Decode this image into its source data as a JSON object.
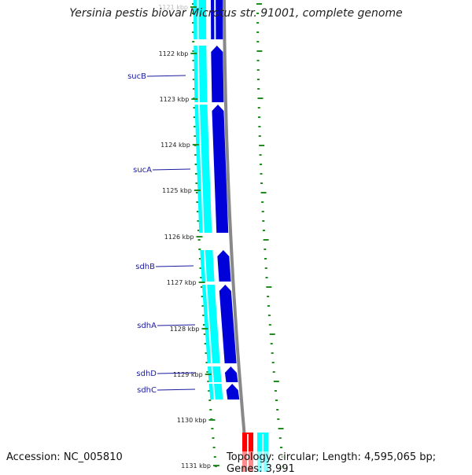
{
  "title": "Yersinia pestis biovar Microtus str. 91001, complete genome",
  "accession": "Accession: NC_005810",
  "topology": "Topology: circular; Length: 4,595,065 bp; Genes: 3,991",
  "ruler": [
    {
      "label": "1121 kbp",
      "faded": true
    },
    {
      "label": "1122 kbp"
    },
    {
      "label": "1123 kbp"
    },
    {
      "label": "1124 kbp"
    },
    {
      "label": "1125 kbp"
    },
    {
      "label": "1126 kbp"
    },
    {
      "label": "1127 kbp"
    },
    {
      "label": "1128 kbp"
    },
    {
      "label": "1129 kbp"
    },
    {
      "label": "1130 kbp"
    },
    {
      "label": "1131 kbp"
    }
  ],
  "genes": [
    {
      "name": "sucB"
    },
    {
      "name": "sucA"
    },
    {
      "name": "sdhB"
    },
    {
      "name": "sdhA"
    },
    {
      "name": "sdhD"
    },
    {
      "name": "sdhC"
    }
  ],
  "colors": {
    "cds": "#00ffff",
    "gene": "#0000d8",
    "backbone": "#888888",
    "gc_ticks": "#228b22",
    "rna": "#ff0000",
    "label": "#1a1aa0"
  }
}
